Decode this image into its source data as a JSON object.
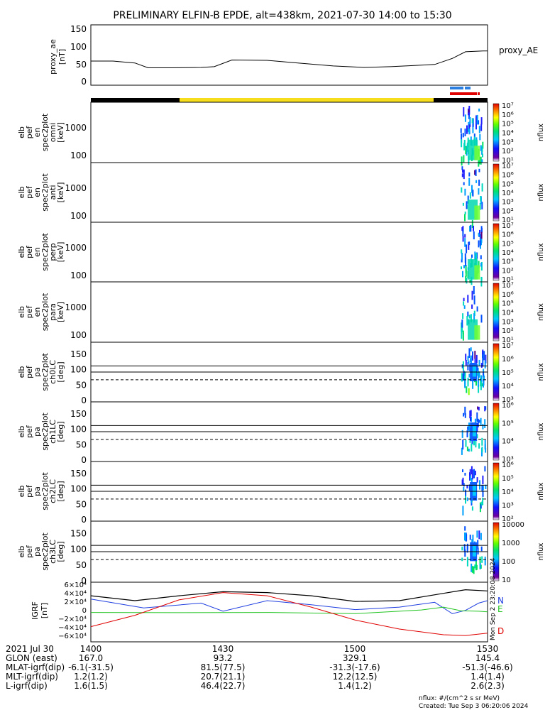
{
  "title": "PRELIMINARY ELFIN-B EPDE, alt=438km, 2021-07-30 14:00 to 15:30",
  "colors": {
    "black": "#000000",
    "yellow": "#f6de1d",
    "blue": "#2a7fe0",
    "red": "#e00000",
    "grf_n": "#1f3ee0",
    "grf_e": "#22c422",
    "grf_d": "#e00000"
  },
  "panels": {
    "proxy": {
      "ylabel": [
        "proxy_ae",
        "[nT]"
      ],
      "legend": "proxy_AE"
    },
    "spec": [
      {
        "ylabel": [
          "elb",
          "pef",
          "en",
          "spec2plot",
          "omni",
          "[keV]"
        ],
        "cbar_label": "nflux"
      },
      {
        "ylabel": [
          "elb",
          "pef",
          "en",
          "spec2plot",
          "anti",
          "[keV]"
        ],
        "cbar_label": "nflux"
      },
      {
        "ylabel": [
          "elb",
          "pef",
          "en",
          "spec2plot",
          "perp",
          "[keV]"
        ],
        "cbar_label": "nflux"
      },
      {
        "ylabel": [
          "elb",
          "pef",
          "en",
          "spec2plot",
          "para",
          "[keV]"
        ],
        "cbar_label": "nflux"
      }
    ],
    "pa": [
      {
        "ylabel": [
          "elb",
          "pef",
          "pa",
          "spec2plot",
          "ch0LC",
          "[deg]"
        ],
        "cbar_label": "nflux"
      },
      {
        "ylabel": [
          "elb",
          "pef",
          "pa",
          "spec2plot",
          "ch1LC",
          "[deg]"
        ],
        "cbar_label": "nflux"
      },
      {
        "ylabel": [
          "elb",
          "pef",
          "pa",
          "spec2plot",
          "ch2LC",
          "[deg]"
        ],
        "cbar_label": "nflux"
      },
      {
        "ylabel": [
          "elb",
          "pef",
          "pa",
          "spec2plot",
          "ch3LC",
          "[deg]"
        ],
        "cbar_label": "nflux"
      }
    ],
    "grf": {
      "ylabel": [
        "IGRF",
        "[nT]"
      ],
      "legend": [
        "N",
        "E",
        "D"
      ],
      "side_note": "Mon Sep 2 23:20:08 2024"
    }
  },
  "axis_ticks": {
    "proxy": [
      "0",
      "50",
      "100",
      "150"
    ],
    "spec_energy": [
      "100",
      "1000"
    ],
    "pa_deg": [
      "0",
      "50",
      "100",
      "150"
    ],
    "grf": [
      "−6×10⁴",
      "−4×10⁴",
      "−2×10⁴",
      "0",
      "2×10⁴",
      "4×10⁴",
      "6×10⁴"
    ]
  },
  "colorbars": {
    "spec": [
      "10¹",
      "10²",
      "10³",
      "10⁴",
      "10⁵",
      "10⁶",
      "10⁷"
    ],
    "pa0": [
      "10³",
      "10⁴",
      "10⁵",
      "10⁶",
      "10⁷"
    ],
    "pa1": [
      "10³",
      "10⁴",
      "10⁵",
      "10⁶"
    ],
    "pa2": [
      "10²",
      "10³",
      "10⁴",
      "10⁵",
      "10⁶"
    ],
    "pa3": [
      "10",
      "100",
      "1000",
      "10000"
    ]
  },
  "chart_data": {
    "type": "line",
    "x_ticks": [
      "1400",
      "1430",
      "1500",
      "1530"
    ],
    "x_minutes": [
      0,
      30,
      60,
      90
    ],
    "proxy_ae": {
      "ylim": [
        0,
        150
      ],
      "x": [
        0,
        5,
        10,
        13,
        18,
        25,
        28,
        32,
        40,
        47,
        55,
        62,
        68,
        73,
        78,
        82,
        85,
        89,
        90
      ],
      "y": [
        55,
        55,
        50,
        37,
        37,
        38,
        40,
        58,
        57,
        50,
        42,
        38,
        40,
        43,
        46,
        62,
        80,
        82,
        82
      ]
    },
    "spectrogram_energy_ylim_keV": [
      50,
      8000
    ],
    "pitch_angle_ylim_deg": [
      0,
      180
    ],
    "pitch_angle_lines_deg": [
      90,
      110
    ],
    "pitch_angle_dashed_deg": [
      65
    ],
    "igrf": {
      "ylim": [
        -70000,
        70000
      ],
      "series": [
        {
          "name": "N",
          "x": [
            0,
            12,
            25,
            30,
            40,
            50,
            60,
            70,
            78,
            82,
            85,
            88,
            90
          ],
          "y": [
            32000,
            10000,
            22000,
            2000,
            28000,
            18000,
            6000,
            12000,
            24000,
            -4000,
            4000,
            22000,
            28000
          ]
        },
        {
          "name": "E",
          "x": [
            0,
            20,
            40,
            60,
            75,
            80,
            84,
            88,
            90
          ],
          "y": [
            -1000,
            -1500,
            -1000,
            -4000,
            5000,
            12000,
            3000,
            2000,
            500
          ]
        },
        {
          "name": "D",
          "x": [
            0,
            10,
            20,
            30,
            40,
            50,
            60,
            70,
            80,
            85,
            90
          ],
          "y": [
            -36000,
            -8000,
            30000,
            48000,
            40000,
            12000,
            -20000,
            -42000,
            -56000,
            -58000,
            -52000
          ]
        },
        {
          "name": "total",
          "x": [
            0,
            10,
            20,
            30,
            40,
            50,
            60,
            70,
            80,
            85,
            90
          ],
          "y": [
            40000,
            28000,
            40000,
            50000,
            48000,
            40000,
            26000,
            28000,
            46000,
            55000,
            52000
          ]
        }
      ]
    },
    "orbit_bar": [
      {
        "from": 0,
        "to": 21,
        "color": "black"
      },
      {
        "from": 21,
        "to": 80.5,
        "color": "yellow"
      },
      {
        "from": 80.5,
        "to": 90,
        "color": "black"
      }
    ],
    "science_marks": {
      "blue": [
        [
          84.5,
          87.5
        ],
        [
          87.7,
          89
        ]
      ],
      "red": [
        [
          84.5,
          90
        ],
        [
          90.3,
          90.9
        ]
      ]
    }
  },
  "footer": {
    "date_label": "2021 Jul 30",
    "rows": [
      {
        "label": "GLON (east)",
        "values": [
          "167.0",
          "93.2",
          "329.1",
          "145.4"
        ]
      },
      {
        "label": "MLAT-igrf(dip)",
        "values": [
          "-6.1(-31.5)",
          "81.5(77.5)",
          "-31.3(-17.6)",
          "-51.3(-46.6)"
        ]
      },
      {
        "label": "MLT-igrf(dip)",
        "values": [
          "1.2(1.2)",
          "20.7(21.1)",
          "12.2(12.5)",
          "1.4(1.4)"
        ]
      },
      {
        "label": "L-igrf(dip)",
        "values": [
          "1.6(1.5)",
          "46.4(22.7)",
          "1.4(1.2)",
          "2.6(2.3)"
        ]
      }
    ],
    "units_note": "nflux: #/(cm^2 s sr MeV)",
    "created": "Created: Tue Sep  3 06:20:06 2024"
  }
}
